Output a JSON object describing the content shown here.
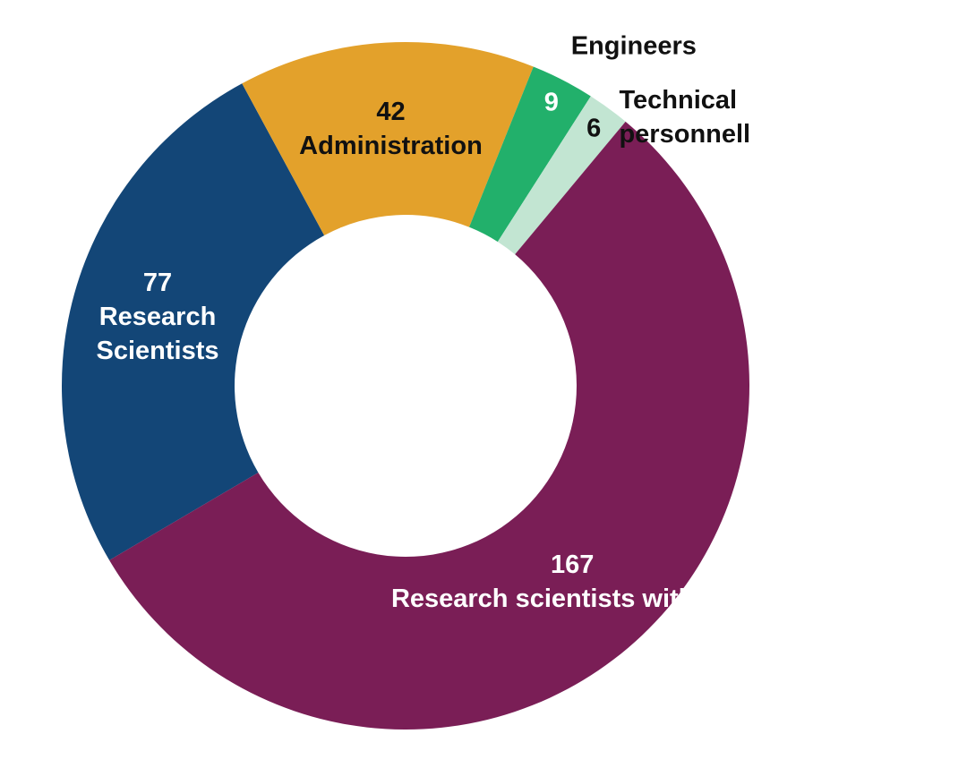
{
  "chart_data": {
    "type": "pie",
    "variant": "donut",
    "slices": [
      {
        "value": 77,
        "label_lines": [
          "77",
          "Research",
          "Scientists"
        ],
        "color": "#134677",
        "text_color": "#ffffff",
        "label_placement": "inside"
      },
      {
        "value": 42,
        "label_lines": [
          "42",
          "Administration"
        ],
        "color": "#E3A12B",
        "text_color": "#111111",
        "label_placement": "inside"
      },
      {
        "value": 9,
        "label_lines": [
          "9"
        ],
        "outside_label_lines": [
          "Engineers"
        ],
        "color": "#22B06B",
        "text_color": "#ffffff",
        "label_placement": "edge"
      },
      {
        "value": 6,
        "label_lines": [
          "6"
        ],
        "outside_label_lines": [
          "Technical",
          "personnell"
        ],
        "color": "#C2E5D2",
        "text_color": "#111111",
        "label_placement": "edge"
      },
      {
        "value": 167,
        "label_lines": [
          "167",
          "Research scientists with PhD"
        ],
        "color": "#7A1E56",
        "text_color": "#ffffff",
        "label_placement": "inside"
      }
    ],
    "legend": "none",
    "background": "#ffffff"
  }
}
